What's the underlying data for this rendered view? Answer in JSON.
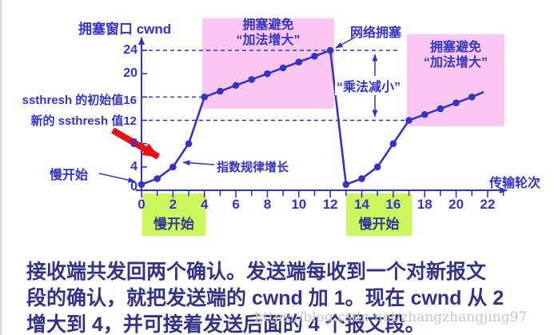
{
  "colors": {
    "curve_blue": "#3434c4",
    "label_blue": "#3333cc",
    "pink_region": "#fac7f0",
    "green_region": "#ccf75f",
    "red_arrow": "#e81010",
    "caption_navy": "#333388",
    "watermark_gray": "#c7c7c7"
  },
  "chart": {
    "title": "拥塞窗口 cwnd",
    "x_axis_label": "传输轮次",
    "ssthresh_initial_label": "ssthresh 的初始值16",
    "ssthresh_new_label": "新的 ssthresh 值12",
    "labels": {
      "slow_start_pointer": "慢开始",
      "exp_growth": "指数规律增长",
      "congestion_avoidance_1_line1": "拥塞避免",
      "congestion_avoidance_1_line2": "“加法增大”",
      "congestion_avoidance_2_line1": "拥塞避免",
      "congestion_avoidance_2_line2": "“加法增大”",
      "network_congestion": "网络拥塞",
      "multiplicative_decrease": "“乘法减小”",
      "slow_start_region_1": "慢开始",
      "slow_start_region_2": "慢开始"
    }
  },
  "chart_data": {
    "type": "line",
    "title": "拥塞窗口 cwnd",
    "xlabel": "传输轮次",
    "ylabel": "拥塞窗口 cwnd",
    "points": [
      [
        0,
        1
      ],
      [
        1,
        2
      ],
      [
        2,
        4
      ],
      [
        3,
        8
      ],
      [
        4,
        16
      ],
      [
        5,
        17
      ],
      [
        6,
        18
      ],
      [
        7,
        19
      ],
      [
        8,
        20
      ],
      [
        9,
        21
      ],
      [
        10,
        22
      ],
      [
        11,
        23
      ],
      [
        12,
        24
      ],
      [
        13,
        1
      ],
      [
        14,
        2
      ],
      [
        15,
        4
      ],
      [
        16,
        8
      ],
      [
        17,
        12
      ],
      [
        18,
        13
      ],
      [
        19,
        14
      ],
      [
        20,
        15
      ],
      [
        21,
        16
      ]
    ],
    "line_end": [
      21.7,
      16.8
    ],
    "x_ticks_labeled": [
      0,
      2,
      4,
      6,
      8,
      10,
      12,
      14,
      16,
      18,
      20,
      22
    ],
    "x_ticks_minor_max": 23,
    "y_ticks": [
      4,
      8,
      12,
      16,
      20,
      24
    ],
    "y_tick_text_labels": [
      0,
      4,
      8,
      20,
      24
    ],
    "dashed_levels": [
      24,
      16,
      12
    ],
    "ssthresh_initial": 16,
    "ssthresh_new": 12,
    "xlim": [
      0,
      23
    ],
    "ylim": [
      0,
      26
    ],
    "grid": "dashed reference lines at cwnd 24, 16, 12 only",
    "legend": "none",
    "phases": [
      {
        "name": "慢开始 (slow start)",
        "rounds": "0-4",
        "cwnd": "1→2→4→8→16"
      },
      {
        "name": "拥塞避免 加法增大 (additive increase)",
        "rounds": "4-12",
        "cwnd": "16→24"
      },
      {
        "name": "网络拥塞 / 乘法减小 (multiplicative decrease)",
        "rounds": "12-13",
        "cwnd": "24→1, ssthresh 16→12"
      },
      {
        "name": "慢开始 (slow start)",
        "rounds": "13-17",
        "cwnd": "1→2→4→8→12"
      },
      {
        "name": "拥塞避免 加法增大 (additive increase)",
        "rounds": "17-21",
        "cwnd": "12→16"
      }
    ]
  },
  "caption": {
    "lines": [
      "接收端共发回两个确认。发送端每收到一个对新报文",
      "段的确认，就把发送端的 cwnd 加 1。现在 cwnd 从 2",
      "增大到 4，并可接着发送后面的 4 个报文段。"
    ]
  },
  "watermark": {
    "text": "https://blog.csdn.net/zhangzhangjing97"
  }
}
